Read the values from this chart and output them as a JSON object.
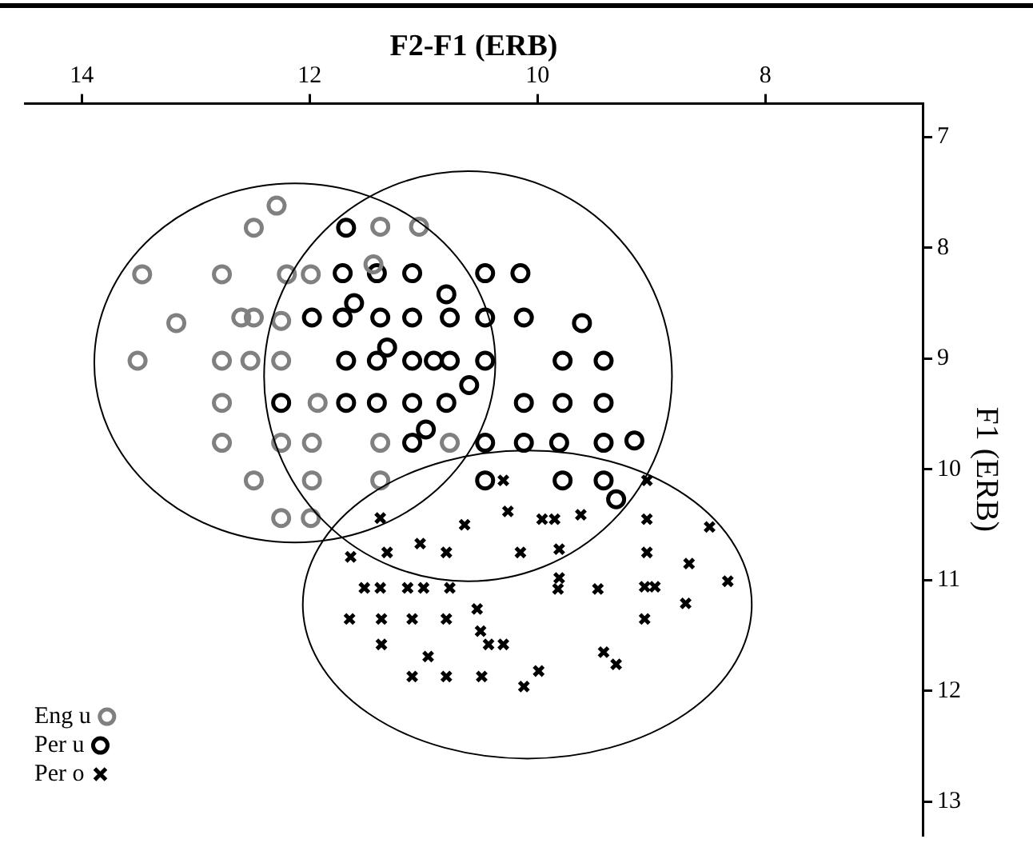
{
  "chart_data": {
    "type": "scatter",
    "xlabel": "F2-F1 (ERB)",
    "ylabel": "F1 (ERB)",
    "xlim": [
      14.5,
      6.62
    ],
    "xticks": [
      14,
      12,
      10,
      8
    ],
    "ylim": [
      13.3,
      6.7
    ],
    "yticks": [
      7,
      8,
      9,
      10,
      11,
      12,
      13
    ],
    "grid": false,
    "legend": "bottom left",
    "series": [
      {
        "name": "Eng u",
        "color": "#808080",
        "marker": "circle",
        "x": [
          12.29,
          12.49,
          13.47,
          12.77,
          12.2,
          11.99,
          11.44,
          13.17,
          12.6,
          12.49,
          12.25,
          13.51,
          12.77,
          12.52,
          12.25,
          12.77,
          11.93,
          12.77,
          12.25,
          11.98,
          11.38,
          10.77,
          12.49,
          11.98,
          11.38,
          12.25,
          11.99,
          11.38,
          11.04
        ],
        "values": [
          7.62,
          7.82,
          8.24,
          8.24,
          8.24,
          8.24,
          8.15,
          8.68,
          8.63,
          8.63,
          8.66,
          9.02,
          9.02,
          9.02,
          9.02,
          9.4,
          9.4,
          9.76,
          9.76,
          9.76,
          9.76,
          9.76,
          10.1,
          10.1,
          10.1,
          10.44,
          10.44,
          7.81,
          7.81
        ]
      },
      {
        "name": "Per u",
        "color": "#000000",
        "marker": "circle",
        "x": [
          11.68,
          11.71,
          11.41,
          11.1,
          10.46,
          10.15,
          10.8,
          11.98,
          11.71,
          11.61,
          11.38,
          11.1,
          10.77,
          10.46,
          10.12,
          9.61,
          11.68,
          11.41,
          11.32,
          11.1,
          10.91,
          10.77,
          10.46,
          9.78,
          9.42,
          10.6,
          12.25,
          11.68,
          11.41,
          11.1,
          10.8,
          10.12,
          9.78,
          9.42,
          11.1,
          10.98,
          10.46,
          10.12,
          9.81,
          9.42,
          9.15,
          10.46,
          9.78,
          9.42,
          9.31
        ],
        "values": [
          7.82,
          8.23,
          8.23,
          8.23,
          8.23,
          8.23,
          8.42,
          8.63,
          8.63,
          8.5,
          8.63,
          8.63,
          8.63,
          8.63,
          8.63,
          8.68,
          9.02,
          9.02,
          8.9,
          9.02,
          9.02,
          9.02,
          9.02,
          9.02,
          9.02,
          9.24,
          9.4,
          9.4,
          9.4,
          9.4,
          9.4,
          9.4,
          9.4,
          9.4,
          9.76,
          9.64,
          9.76,
          9.76,
          9.76,
          9.76,
          9.74,
          10.1,
          10.1,
          10.1,
          10.27
        ]
      },
      {
        "name": "Per o",
        "color": "#000000",
        "marker": "cross",
        "x": [
          10.3,
          9.04,
          11.38,
          10.64,
          10.26,
          9.96,
          9.85,
          9.62,
          9.04,
          8.49,
          11.64,
          11.32,
          11.03,
          10.8,
          10.15,
          9.81,
          9.04,
          8.67,
          8.33,
          11.52,
          11.38,
          11.14,
          11.0,
          10.77,
          9.81,
          9.82,
          9.47,
          9.06,
          8.97,
          8.7,
          11.65,
          11.37,
          11.1,
          10.8,
          10.53,
          9.06,
          11.37,
          10.5,
          10.43,
          10.3,
          10.96,
          9.42,
          9.31,
          11.1,
          10.8,
          10.49,
          9.99,
          10.12
        ],
        "values": [
          10.1,
          10.1,
          10.44,
          10.5,
          10.38,
          10.45,
          10.45,
          10.41,
          10.45,
          10.52,
          10.79,
          10.75,
          10.67,
          10.75,
          10.75,
          10.72,
          10.75,
          10.85,
          11.01,
          11.07,
          11.07,
          11.07,
          11.07,
          11.07,
          10.98,
          11.08,
          11.08,
          11.06,
          11.06,
          11.21,
          11.35,
          11.35,
          11.35,
          11.35,
          11.26,
          11.35,
          11.58,
          11.46,
          11.58,
          11.58,
          11.69,
          11.65,
          11.76,
          11.87,
          11.87,
          11.87,
          11.82,
          11.96
        ]
      }
    ]
  }
}
